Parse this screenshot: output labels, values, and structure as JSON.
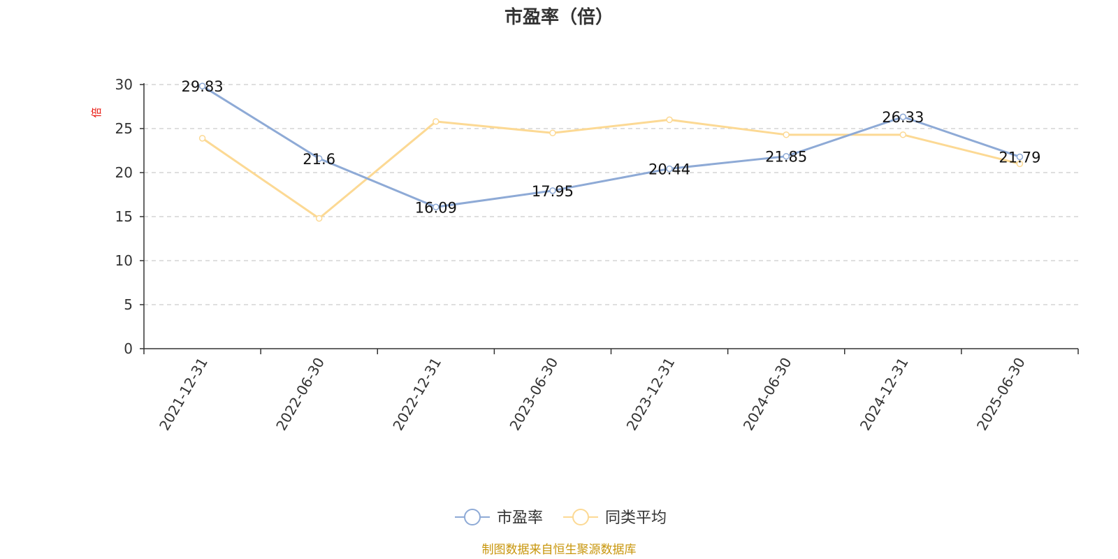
{
  "chart_data": {
    "type": "line",
    "title": "市盈率（倍）",
    "ylabel": "倍",
    "xlabel": "",
    "categories": [
      "2021-12-31",
      "2022-06-30",
      "2022-12-31",
      "2023-06-30",
      "2023-12-31",
      "2024-06-30",
      "2024-12-31",
      "2025-06-30"
    ],
    "ylim": [
      0,
      30
    ],
    "yticks": [
      0,
      5,
      10,
      15,
      20,
      25,
      30
    ],
    "grid": true,
    "legend_position": "bottom-center",
    "series": [
      {
        "name": "市盈率",
        "color": "#8eaad6",
        "values": [
          29.83,
          21.6,
          16.09,
          17.95,
          20.44,
          21.85,
          26.33,
          21.79
        ],
        "labels": [
          "29.83",
          "21.6",
          "16.09",
          "17.95",
          "20.44",
          "21.85",
          "26.33",
          "21.79"
        ]
      },
      {
        "name": "同类平均",
        "color": "#fcd994",
        "values": [
          23.9,
          14.8,
          25.8,
          24.5,
          26.0,
          24.3,
          24.3,
          21.0
        ]
      }
    ]
  },
  "footer": {
    "text": "制图数据来自恒生聚源数据库",
    "color": "#c8960c"
  }
}
